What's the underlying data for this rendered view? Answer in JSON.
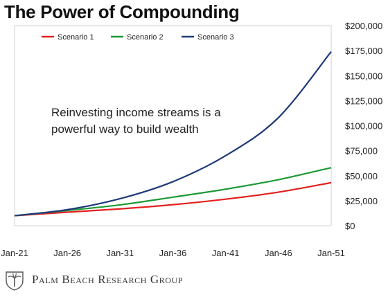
{
  "title": "The Power of Compounding",
  "brand": {
    "name": "Palm Beach Research Group",
    "logo_icon": "palm-tree-crest-icon"
  },
  "chart_data": {
    "type": "line",
    "title": "The Power of Compounding",
    "annotation": "Reinvesting income streams is a powerful way to build wealth",
    "x_ticks": [
      "Jan-21",
      "Jan-26",
      "Jan-31",
      "Jan-36",
      "Jan-41",
      "Jan-46",
      "Jan-51"
    ],
    "x_years": [
      2021,
      2026,
      2031,
      2036,
      2041,
      2046,
      2051
    ],
    "y_ticks": [
      "$0",
      "$25,000",
      "$50,000",
      "$75,000",
      "$100,000",
      "$125,000",
      "$150,000",
      "$175,000",
      "$200,000"
    ],
    "ylim": [
      0,
      200000
    ],
    "y_axis_side": "right",
    "legend_position": "top",
    "grid": false,
    "series": [
      {
        "name": "Scenario 1",
        "color": "#e3211f",
        "points": [
          [
            2021,
            10000
          ],
          [
            2026,
            13500
          ],
          [
            2031,
            16800
          ],
          [
            2036,
            21000
          ],
          [
            2041,
            26500
          ],
          [
            2046,
            33500
          ],
          [
            2051,
            43000
          ]
        ]
      },
      {
        "name": "Scenario 2",
        "color": "#1e9a36",
        "points": [
          [
            2021,
            10000
          ],
          [
            2026,
            15200
          ],
          [
            2031,
            20800
          ],
          [
            2036,
            28500
          ],
          [
            2041,
            36500
          ],
          [
            2046,
            46000
          ],
          [
            2051,
            58000
          ]
        ]
      },
      {
        "name": "Scenario 3",
        "color": "#1f3a7a",
        "points": [
          [
            2021,
            10000
          ],
          [
            2026,
            16000
          ],
          [
            2031,
            27000
          ],
          [
            2036,
            44000
          ],
          [
            2041,
            70000
          ],
          [
            2046,
            108000
          ],
          [
            2051,
            174000
          ]
        ]
      }
    ]
  }
}
